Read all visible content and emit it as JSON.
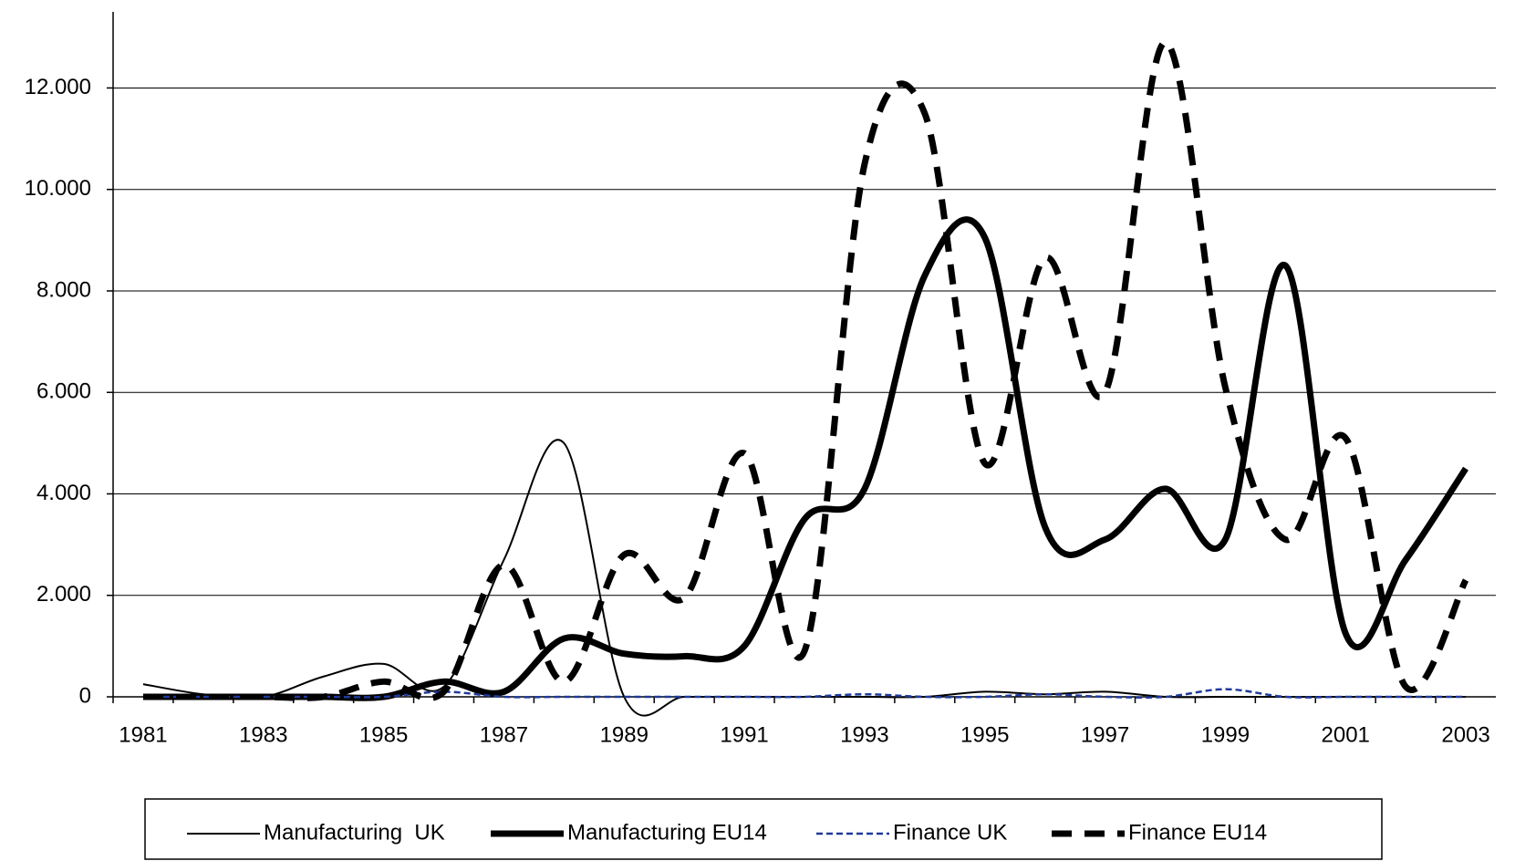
{
  "chart_data": {
    "type": "line",
    "x": [
      1981,
      1982,
      1983,
      1984,
      1985,
      1986,
      1987,
      1988,
      1989,
      1990,
      1991,
      1992,
      1993,
      1994,
      1995,
      1996,
      1997,
      1998,
      1999,
      2000,
      2001,
      2002,
      2003
    ],
    "xlim": [
      1980.5,
      2003.5
    ],
    "xticks": [
      1981,
      1983,
      1985,
      1987,
      1989,
      1991,
      1993,
      1995,
      1997,
      1999,
      2001,
      2003
    ],
    "ylim": [
      0,
      13500
    ],
    "yticks": [
      0,
      {
        "value": 2000,
        "label": "2.000"
      },
      {
        "value": 4000,
        "label": "4.000"
      },
      {
        "value": 6000,
        "label": "6.000"
      },
      {
        "value": 8000,
        "label": "8.000"
      },
      {
        "value": 10000,
        "label": "10.000"
      },
      {
        "value": 12000,
        "label": "12.000"
      }
    ],
    "grid": true,
    "legend": "bottom",
    "series": [
      {
        "name": "Manufacturing  UK",
        "color": "#000000",
        "values": [
          250,
          50,
          0,
          400,
          650,
          200,
          2700,
          5000,
          0,
          0,
          0,
          0,
          0,
          0,
          100,
          50,
          100,
          0,
          0,
          0,
          0,
          0,
          0
        ]
      },
      {
        "name": "Manufacturing EU14",
        "color": "#000000",
        "values": [
          0,
          0,
          0,
          0,
          0,
          300,
          100,
          1150,
          850,
          800,
          1000,
          3500,
          4100,
          8300,
          9050,
          3350,
          3100,
          4100,
          3100,
          8500,
          1250,
          2700,
          4500
        ]
      },
      {
        "name": "Finance UK",
        "color": "#1f3a9a",
        "values": [
          0,
          0,
          0,
          0,
          0,
          100,
          0,
          0,
          0,
          0,
          0,
          0,
          50,
          0,
          0,
          50,
          0,
          0,
          150,
          0,
          0,
          0,
          0
        ]
      },
      {
        "name": "Finance EU14",
        "color": "#000000",
        "values": [
          0,
          0,
          0,
          0,
          300,
          100,
          2600,
          300,
          2800,
          1950,
          4800,
          900,
          10500,
          11500,
          4600,
          8650,
          6000,
          12900,
          6100,
          3100,
          5100,
          200,
          2300
        ]
      }
    ]
  }
}
